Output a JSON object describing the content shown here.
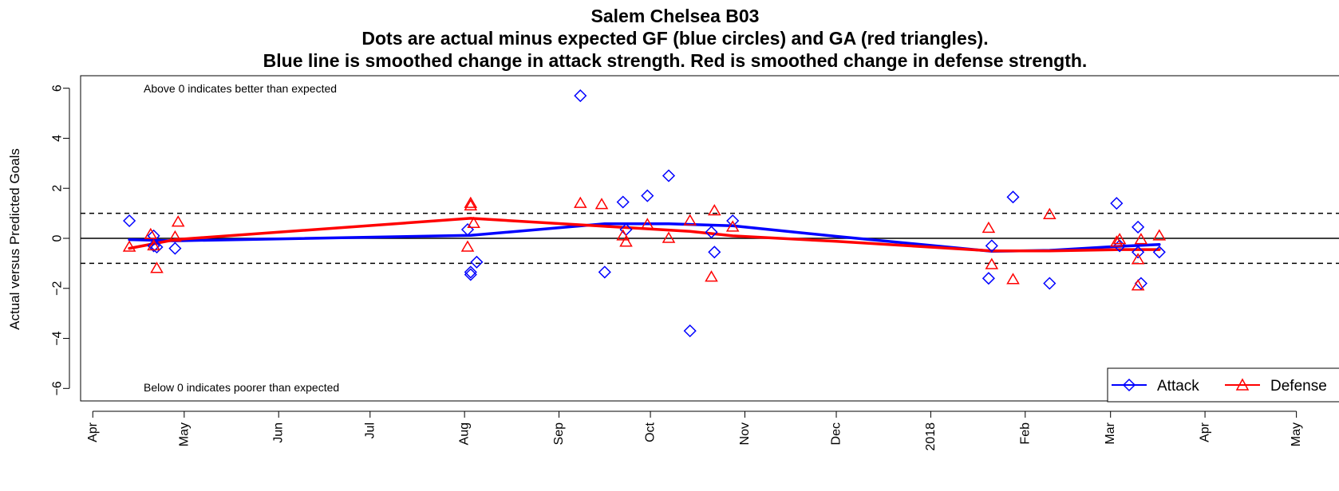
{
  "chart_data": {
    "type": "scatter",
    "title_lines": [
      "Salem Chelsea B03",
      "Dots are actual minus expected GF (blue circles) and GA (red triangles).",
      "Blue line is smoothed change in attack strength. Red is smoothed change in defense strength."
    ],
    "ylabel": "Actual versus Predicted Goals",
    "xlabel": "",
    "x_axis_type": "date",
    "xlim": [
      "2017-03-28",
      "2018-05-21"
    ],
    "ylim": [
      -6.5,
      6.5
    ],
    "y_ticks": [
      -6,
      -4,
      -2,
      0,
      2,
      4,
      6
    ],
    "y_tick_labels": [
      "−6",
      "−4",
      "−2",
      "0",
      "2",
      "4",
      "6"
    ],
    "x_ticks": [
      {
        "date": "2017-04-01",
        "label": "Apr"
      },
      {
        "date": "2017-05-01",
        "label": "May"
      },
      {
        "date": "2017-06-01",
        "label": "Jun"
      },
      {
        "date": "2017-07-01",
        "label": "Jul"
      },
      {
        "date": "2017-08-01",
        "label": "Aug"
      },
      {
        "date": "2017-09-01",
        "label": "Sep"
      },
      {
        "date": "2017-10-01",
        "label": "Oct"
      },
      {
        "date": "2017-11-01",
        "label": "Nov"
      },
      {
        "date": "2017-12-01",
        "label": "Dec"
      },
      {
        "date": "2018-01-01",
        "label": "2018"
      },
      {
        "date": "2018-02-01",
        "label": "Feb"
      },
      {
        "date": "2018-03-01",
        "label": "Mar"
      },
      {
        "date": "2018-04-01",
        "label": "Apr"
      },
      {
        "date": "2018-05-01",
        "label": "May"
      }
    ],
    "reference_lines": [
      {
        "y": 0,
        "style": "solid"
      },
      {
        "y": 1,
        "style": "dashed"
      },
      {
        "y": -1,
        "style": "dashed"
      }
    ],
    "annotations": [
      {
        "text": "Above 0 indicates better than expected",
        "position": "top-left"
      },
      {
        "text": "Below 0 indicates poorer than expected",
        "position": "bottom-left"
      }
    ],
    "legend": {
      "position": "bottom-right",
      "entries": [
        {
          "label": "Attack",
          "color": "#0000ff",
          "marker": "diamond"
        },
        {
          "label": "Defense",
          "color": "#ff0000",
          "marker": "triangle"
        }
      ]
    },
    "series": [
      {
        "name": "Attack",
        "color": "#0000ff",
        "marker": "diamond",
        "points": [
          {
            "x": "2017-04-13",
            "y": 0.7
          },
          {
            "x": "2017-04-21",
            "y": 0.1
          },
          {
            "x": "2017-04-21",
            "y": -0.3
          },
          {
            "x": "2017-04-22",
            "y": -0.35
          },
          {
            "x": "2017-04-28",
            "y": -0.4
          },
          {
            "x": "2017-08-02",
            "y": 0.35
          },
          {
            "x": "2017-08-03",
            "y": -1.35
          },
          {
            "x": "2017-08-03",
            "y": -1.45
          },
          {
            "x": "2017-08-05",
            "y": -0.95
          },
          {
            "x": "2017-09-08",
            "y": 5.7
          },
          {
            "x": "2017-09-16",
            "y": -1.35
          },
          {
            "x": "2017-09-22",
            "y": 1.45
          },
          {
            "x": "2017-09-23",
            "y": 0.35
          },
          {
            "x": "2017-09-30",
            "y": 1.7
          },
          {
            "x": "2017-10-07",
            "y": 2.5
          },
          {
            "x": "2017-10-14",
            "y": -3.7
          },
          {
            "x": "2017-10-21",
            "y": 0.25
          },
          {
            "x": "2017-10-22",
            "y": -0.55
          },
          {
            "x": "2017-10-28",
            "y": 0.7
          },
          {
            "x": "2018-01-20",
            "y": -1.6
          },
          {
            "x": "2018-01-21",
            "y": -0.3
          },
          {
            "x": "2018-01-28",
            "y": 1.65
          },
          {
            "x": "2018-02-09",
            "y": -1.8
          },
          {
            "x": "2018-03-03",
            "y": 1.4
          },
          {
            "x": "2018-03-04",
            "y": -0.3
          },
          {
            "x": "2018-03-10",
            "y": 0.45
          },
          {
            "x": "2018-03-10",
            "y": -0.55
          },
          {
            "x": "2018-03-11",
            "y": -1.8
          },
          {
            "x": "2018-03-17",
            "y": -0.55
          }
        ],
        "smooth": [
          {
            "x": "2017-04-13",
            "y": -0.05
          },
          {
            "x": "2017-04-28",
            "y": -0.1
          },
          {
            "x": "2017-08-03",
            "y": 0.12
          },
          {
            "x": "2017-09-16",
            "y": 0.58
          },
          {
            "x": "2017-10-07",
            "y": 0.58
          },
          {
            "x": "2017-10-28",
            "y": 0.5
          },
          {
            "x": "2017-12-01",
            "y": 0.08
          },
          {
            "x": "2018-01-21",
            "y": -0.52
          },
          {
            "x": "2018-02-09",
            "y": -0.48
          },
          {
            "x": "2018-03-04",
            "y": -0.32
          },
          {
            "x": "2018-03-17",
            "y": -0.25
          }
        ]
      },
      {
        "name": "Defense",
        "color": "#ff0000",
        "marker": "triangle",
        "points": [
          {
            "x": "2017-04-13",
            "y": -0.35
          },
          {
            "x": "2017-04-20",
            "y": 0.15
          },
          {
            "x": "2017-04-21",
            "y": -0.3
          },
          {
            "x": "2017-04-22",
            "y": -1.2
          },
          {
            "x": "2017-04-28",
            "y": 0.05
          },
          {
            "x": "2017-04-29",
            "y": 0.65
          },
          {
            "x": "2017-08-02",
            "y": -0.35
          },
          {
            "x": "2017-08-03",
            "y": 1.4
          },
          {
            "x": "2017-08-03",
            "y": 1.3
          },
          {
            "x": "2017-08-04",
            "y": 0.6
          },
          {
            "x": "2017-09-08",
            "y": 1.4
          },
          {
            "x": "2017-09-15",
            "y": 1.35
          },
          {
            "x": "2017-09-22",
            "y": 0.1
          },
          {
            "x": "2017-09-23",
            "y": -0.15
          },
          {
            "x": "2017-09-30",
            "y": 0.55
          },
          {
            "x": "2017-10-07",
            "y": 0.0
          },
          {
            "x": "2017-10-14",
            "y": 0.7
          },
          {
            "x": "2017-10-21",
            "y": -1.55
          },
          {
            "x": "2017-10-22",
            "y": 1.1
          },
          {
            "x": "2017-10-28",
            "y": 0.45
          },
          {
            "x": "2018-01-20",
            "y": 0.4
          },
          {
            "x": "2018-01-21",
            "y": -1.05
          },
          {
            "x": "2018-01-28",
            "y": -1.65
          },
          {
            "x": "2018-02-09",
            "y": 0.95
          },
          {
            "x": "2018-03-03",
            "y": -0.15
          },
          {
            "x": "2018-03-04",
            "y": -0.05
          },
          {
            "x": "2018-03-10",
            "y": -0.85
          },
          {
            "x": "2018-03-10",
            "y": -1.9
          },
          {
            "x": "2018-03-11",
            "y": -0.05
          },
          {
            "x": "2018-03-17",
            "y": 0.1
          }
        ],
        "smooth": [
          {
            "x": "2017-04-13",
            "y": -0.4
          },
          {
            "x": "2017-04-28",
            "y": -0.05
          },
          {
            "x": "2017-08-03",
            "y": 0.8
          },
          {
            "x": "2017-09-16",
            "y": 0.48
          },
          {
            "x": "2017-10-14",
            "y": 0.28
          },
          {
            "x": "2017-10-28",
            "y": 0.1
          },
          {
            "x": "2017-12-01",
            "y": -0.12
          },
          {
            "x": "2018-01-21",
            "y": -0.5
          },
          {
            "x": "2018-02-09",
            "y": -0.5
          },
          {
            "x": "2018-03-04",
            "y": -0.45
          },
          {
            "x": "2018-03-17",
            "y": -0.45
          }
        ]
      }
    ]
  }
}
